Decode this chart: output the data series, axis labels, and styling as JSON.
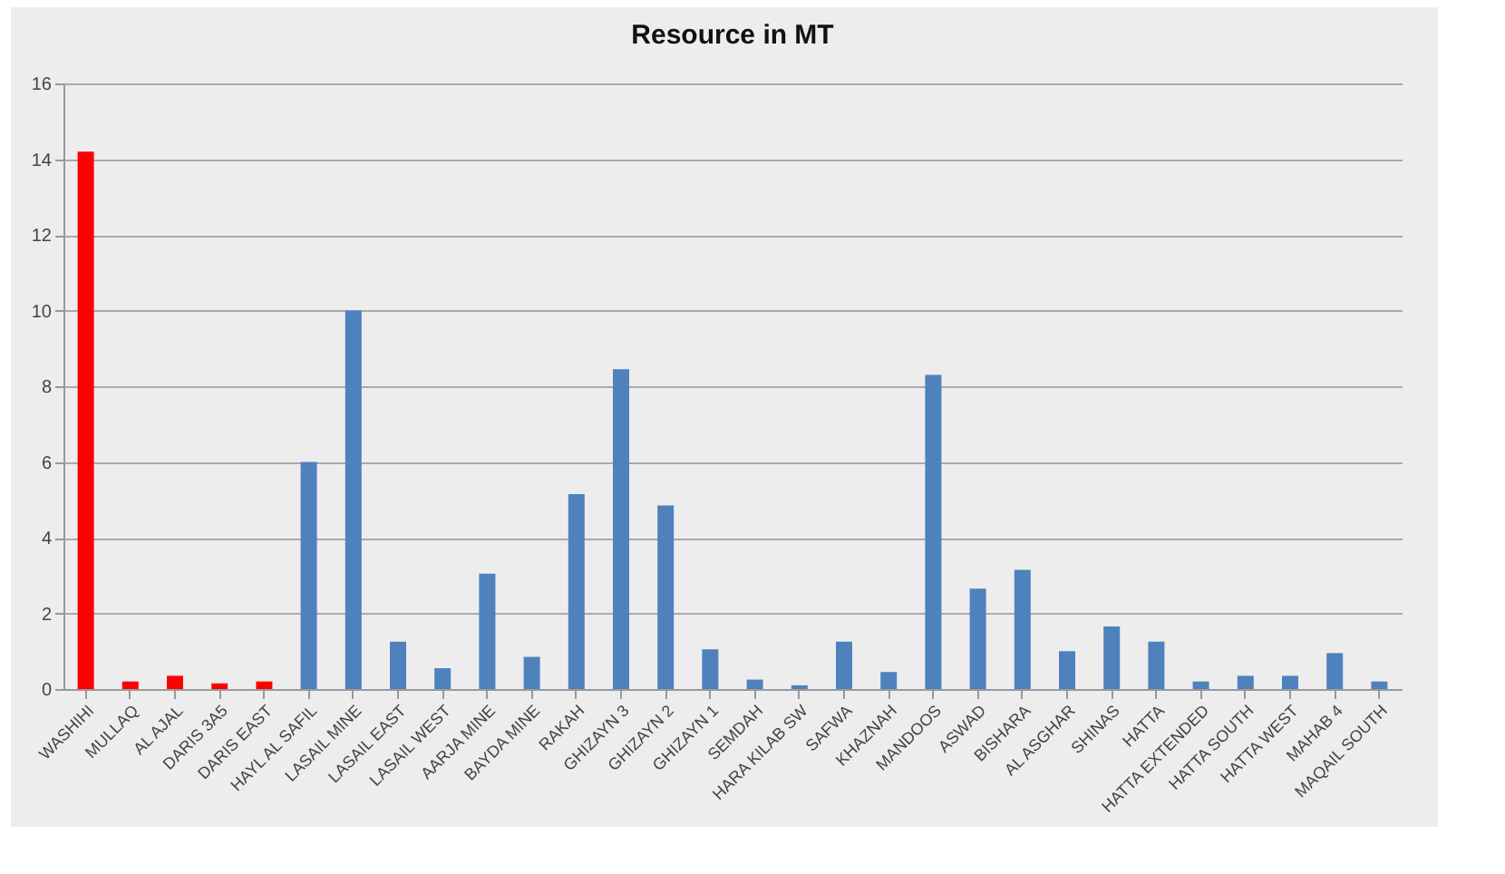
{
  "chart_data": {
    "type": "bar",
    "title": "Resource in MT",
    "categories": [
      "WASHIHI",
      "MULLAQ",
      "AL AJAL",
      "DARIS 3A5",
      "DARIS EAST",
      "HAYL AL SAFIL",
      "LASAIL MINE",
      "LASAIL EAST",
      "LASAIL WEST",
      "AARJA MINE",
      "BAYDA MINE",
      "RAKAH",
      "GHIZAYN 3",
      "GHIZAYN 2",
      "GHIZAYN 1",
      "SEMDAH",
      "HARA KILAB SW",
      "SAFWA",
      "KHAZNAH",
      "MANDOOS",
      "ASWAD",
      "BISHARA",
      "AL ASGHAR",
      "SHINAS",
      "HATTA",
      "HATTA EXTENDED",
      "HATTA SOUTH",
      "HATTA WEST",
      "MAHAB 4",
      "MAQAIL SOUTH"
    ],
    "values": [
      14.2,
      0.2,
      0.35,
      0.15,
      0.2,
      6.0,
      10.0,
      1.25,
      0.55,
      3.05,
      0.85,
      5.15,
      8.45,
      4.85,
      1.05,
      0.25,
      0.1,
      1.25,
      0.45,
      8.3,
      2.65,
      3.15,
      1.0,
      1.65,
      1.25,
      0.2,
      0.35,
      0.35,
      0.95,
      0.2
    ],
    "colors": [
      "#ff0000",
      "#ff0000",
      "#ff0000",
      "#ff0000",
      "#ff0000",
      "#4f81bd",
      "#4f81bd",
      "#4f81bd",
      "#4f81bd",
      "#4f81bd",
      "#4f81bd",
      "#4f81bd",
      "#4f81bd",
      "#4f81bd",
      "#4f81bd",
      "#4f81bd",
      "#4f81bd",
      "#4f81bd",
      "#4f81bd",
      "#4f81bd",
      "#4f81bd",
      "#4f81bd",
      "#4f81bd",
      "#4f81bd",
      "#4f81bd",
      "#4f81bd",
      "#4f81bd",
      "#4f81bd",
      "#4f81bd",
      "#4f81bd"
    ],
    "ylim": [
      0,
      16
    ],
    "yticks": [
      0,
      2,
      4,
      6,
      8,
      10,
      12,
      14,
      16
    ],
    "grid": "y"
  }
}
